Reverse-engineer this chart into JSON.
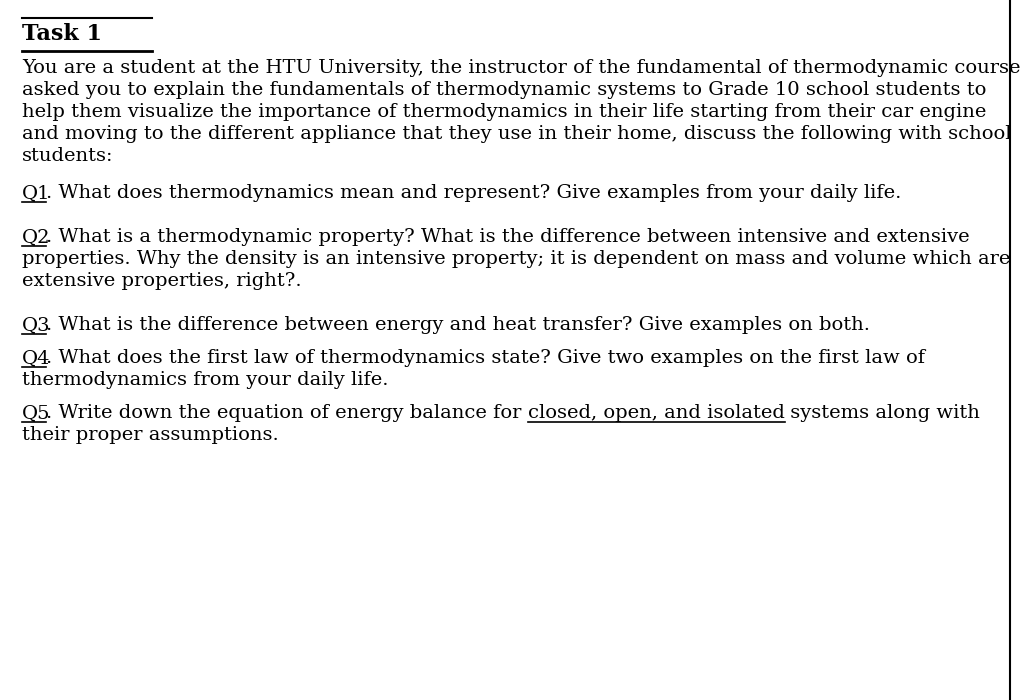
{
  "bg_color": "#ffffff",
  "text_color": "#000000",
  "title": "Task 1",
  "title_fontsize": 16,
  "body_fontsize": 14,
  "q_fontsize": 14,
  "para_lines": [
    "You are a student at the HTU University, the instructor of the fundamental of thermodynamic course",
    "asked you to explain the fundamentals of thermodynamic systems to Grade 10 school students to",
    "help them visualize the importance of thermodynamics in their life starting from their car engine",
    "and moving to the different appliance that they use in their home, discuss the following with school",
    "students:"
  ],
  "q1_label": "Q1",
  "q1_text": ". What does thermodynamics mean and represent? Give examples from your daily life.",
  "q2_label": "Q2",
  "q2_line1": ". What is a thermodynamic property? What is the difference between intensive and extensive",
  "q2_line2": "properties. Why the density is an intensive property; it is dependent on mass and volume which are",
  "q2_line3": "extensive properties, right?.",
  "q3_label": "Q3",
  "q3_text": ". What is the difference between energy and heat transfer? Give examples on both.",
  "q4_label": "Q4",
  "q4_line1": ". What does the first law of thermodynamics state? Give two examples on the first law of",
  "q4_line2": "thermodynamics from your daily life.",
  "q5_label": "Q5",
  "q5_before": ". Write down the equation of energy balance for ",
  "q5_underline": "closed, open, and isolated",
  "q5_after": " systems along with",
  "q5_line2": "their proper assumptions.",
  "font_family": "DejaVu Serif"
}
